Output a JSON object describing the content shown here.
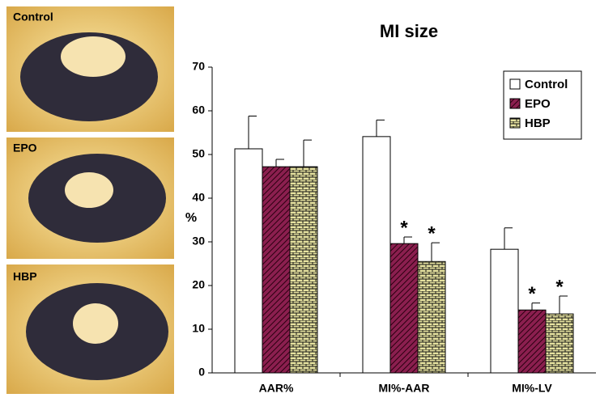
{
  "photos": [
    {
      "label": "Control"
    },
    {
      "label": "EPO"
    },
    {
      "label": "HBP"
    }
  ],
  "chart_data": {
    "type": "bar",
    "title": "MI size",
    "y_label": "%",
    "categories": [
      "AAR%",
      "MI%-AAR",
      "MI%-LV"
    ],
    "series": [
      {
        "name": "Control",
        "color": "#ffffff",
        "hatch": "none",
        "values": [
          51.3,
          54.1,
          28.3
        ],
        "errors": [
          7.5,
          3.8,
          4.9
        ]
      },
      {
        "name": "EPO",
        "color": "#8b1f4f",
        "hatch": "diagonal",
        "values": [
          47.2,
          29.6,
          14.4
        ],
        "errors": [
          1.7,
          1.5,
          1.6
        ]
      },
      {
        "name": "HBP",
        "color": "#e6e2a0",
        "hatch": "brick",
        "values": [
          47.2,
          25.5,
          13.5
        ],
        "errors": [
          6.1,
          4.3,
          4.1
        ]
      }
    ],
    "annotations": [
      "*",
      "*",
      "*",
      "*"
    ],
    "ylim": [
      0,
      70
    ],
    "yticks": [
      0,
      10,
      20,
      30,
      40,
      50,
      60,
      70
    ],
    "grid": false,
    "legend": "top-right"
  }
}
